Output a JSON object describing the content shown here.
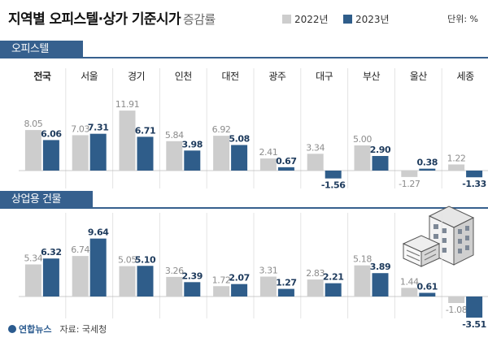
{
  "header": {
    "title": "지역별 오피스텔·상가 기준시가",
    "title_sub": "증감률",
    "legend": [
      {
        "label": "2022년",
        "color": "#cdcdcd"
      },
      {
        "label": "2023년",
        "color": "#2f5d8a"
      }
    ],
    "unit": "단위: %"
  },
  "footer": {
    "logo": "연합뉴스",
    "source": "자료: 국세청"
  },
  "chart_data": [
    {
      "type": "bar",
      "title": "오피스텔",
      "categories": [
        "전국",
        "서울",
        "경기",
        "인천",
        "대전",
        "광주",
        "대구",
        "부산",
        "울산",
        "세종"
      ],
      "series": [
        {
          "name": "2022년",
          "values": [
            8.05,
            7.03,
            11.91,
            5.84,
            6.92,
            2.41,
            3.34,
            5.0,
            -1.27,
            1.22
          ]
        },
        {
          "name": "2023년",
          "values": [
            6.06,
            7.31,
            6.71,
            3.98,
            5.08,
            0.67,
            -1.56,
            2.9,
            0.38,
            -1.33
          ]
        }
      ],
      "labels": {
        "2022년": [
          "8.05",
          "7.03",
          "11.91",
          "5.84",
          "6.92",
          "2.41",
          "3.34",
          "5.00",
          "-1.27",
          "1.22"
        ],
        "2023년": [
          "6.06",
          "7.31",
          "6.71",
          "3.98",
          "5.08",
          "0.67",
          "-1.56",
          "2.90",
          "0.38",
          "-1.33"
        ]
      }
    },
    {
      "type": "bar",
      "title": "상업용 건물",
      "categories": [
        "전국",
        "서울",
        "경기",
        "인천",
        "대전",
        "광주",
        "대구",
        "부산",
        "울산",
        "세종"
      ],
      "series": [
        {
          "name": "2022년",
          "values": [
            5.34,
            6.74,
            5.05,
            3.26,
            1.72,
            3.31,
            2.83,
            5.18,
            1.44,
            -1.08
          ]
        },
        {
          "name": "2023년",
          "values": [
            6.32,
            9.64,
            5.1,
            2.39,
            2.07,
            1.27,
            2.21,
            3.89,
            0.61,
            -3.51
          ]
        }
      ],
      "labels": {
        "2022년": [
          "5.34",
          "6.74",
          "5.05",
          "3.26",
          "1.72",
          "3.31",
          "2.83",
          "5.18",
          "1.44",
          "-1.08"
        ],
        "2023년": [
          "6.32",
          "9.64",
          "5.10",
          "2.39",
          "2.07",
          "1.27",
          "2.21",
          "3.89",
          "0.61",
          "-3.51"
        ]
      }
    }
  ]
}
